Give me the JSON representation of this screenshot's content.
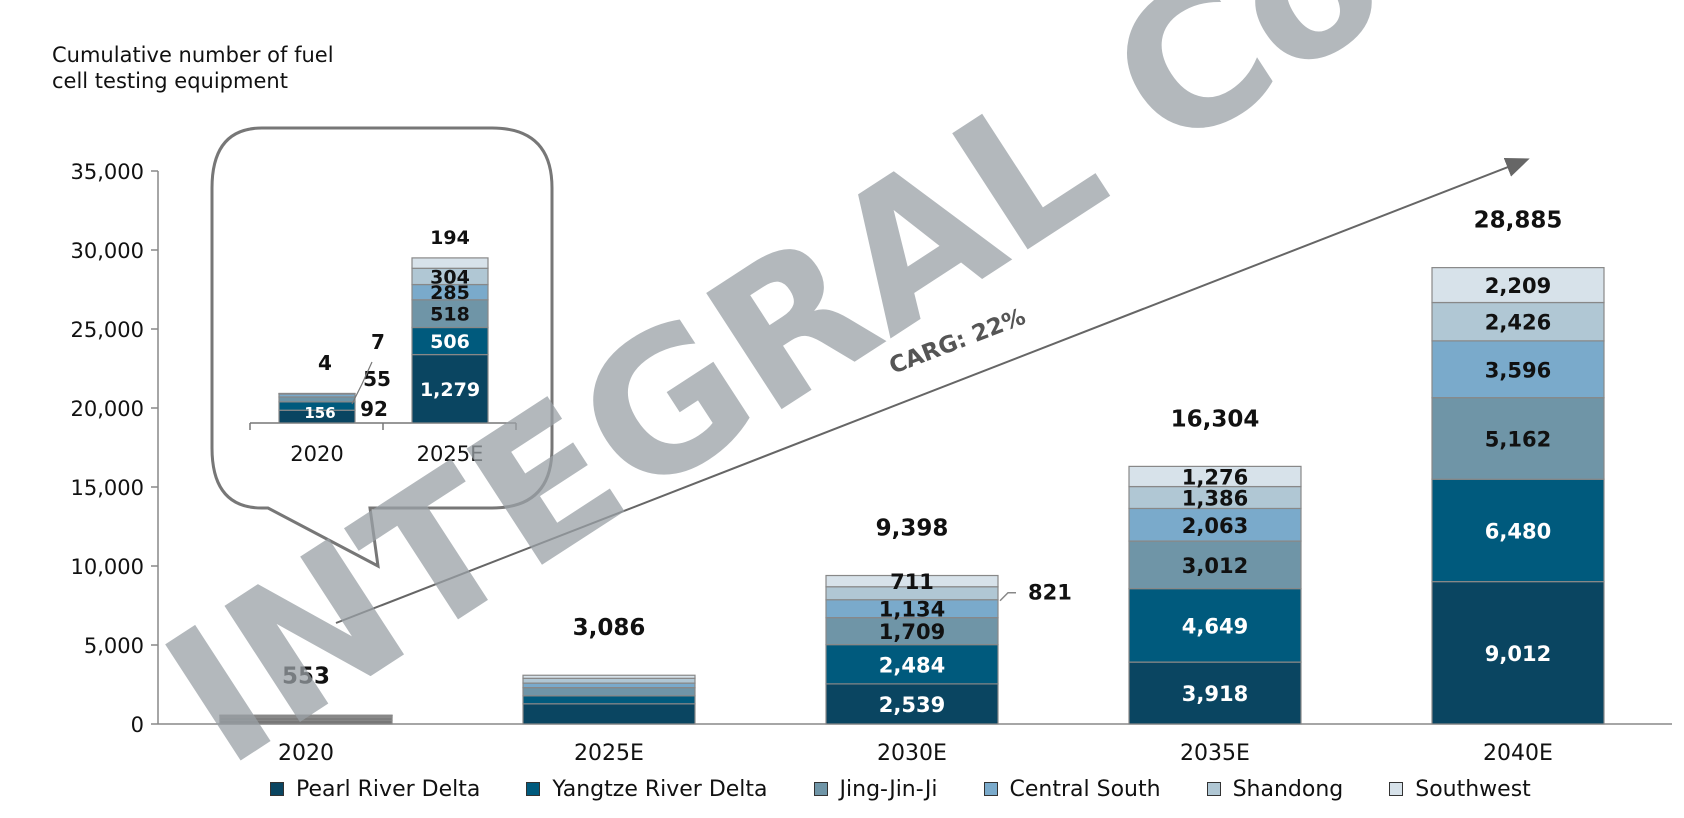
{
  "chart_data": {
    "type": "bar",
    "stacked": true,
    "ylabel": "Cumulative number of fuel cell testing equipment",
    "ylim": [
      0,
      35000
    ],
    "yticks": [
      "0",
      "5,000",
      "10,000",
      "15,000",
      "20,000",
      "25,000",
      "30,000",
      "35,000"
    ],
    "categories": [
      "2020",
      "2025E",
      "2030E",
      "2035E",
      "2040E"
    ],
    "series": [
      {
        "name": "Pearl River Delta",
        "color": "#0a4561",
        "values": [
          null,
          null,
          2539,
          3918,
          9012
        ],
        "labels": [
          "",
          "",
          "2,539",
          "3,918",
          "9,012"
        ]
      },
      {
        "name": "Yangtze River Delta",
        "color": "#005a7d",
        "values": [
          null,
          null,
          2484,
          4649,
          6480
        ],
        "labels": [
          "",
          "",
          "2,484",
          "4,649",
          "6,480"
        ]
      },
      {
        "name": "Jing-Jin-Ji",
        "color": "#6f95a7",
        "values": [
          null,
          null,
          1709,
          3012,
          5162
        ],
        "labels": [
          "",
          "",
          "1,709",
          "3,012",
          "5,162"
        ]
      },
      {
        "name": "Central South",
        "color": "#7aaacb",
        "values": [
          null,
          null,
          1134,
          2063,
          3596
        ],
        "labels": [
          "",
          "",
          "1,134",
          "2,063",
          "3,596"
        ]
      },
      {
        "name": "Shandong",
        "color": "#b0c7d4",
        "values": [
          null,
          null,
          821,
          1386,
          2426
        ],
        "labels": [
          "",
          "",
          "",
          "1,386",
          "2,426"
        ]
      },
      {
        "name": "Southwest",
        "color": "#d7e2ea",
        "values": [
          null,
          null,
          711,
          1276,
          2209
        ],
        "labels": [
          "",
          "",
          "711",
          "1,276",
          "2,209"
        ]
      }
    ],
    "segments_2020": [
      {
        "name": "Pearl River Delta",
        "value": 239
      },
      {
        "name": "Yangtze River Delta",
        "value": 156
      },
      {
        "name": "Jing-Jin-Ji",
        "value": 92
      },
      {
        "name": "Central South",
        "value": 55
      },
      {
        "name": "Shandong",
        "value": 7
      },
      {
        "name": "Southwest",
        "value": 4
      }
    ],
    "segments_2025E": [
      {
        "name": "Pearl River Delta",
        "value": 1279
      },
      {
        "name": "Yangtze River Delta",
        "value": 506
      },
      {
        "name": "Jing-Jin-Ji",
        "value": 518
      },
      {
        "name": "Central South",
        "value": 285
      },
      {
        "name": "Shandong",
        "value": 304
      },
      {
        "name": "Southwest",
        "value": 194
      }
    ],
    "totals": [
      {
        "category": "2020",
        "value": 553,
        "label": "553"
      },
      {
        "category": "2025E",
        "value": 3086,
        "label": "3,086"
      },
      {
        "category": "2030E",
        "value": 9398,
        "label": "9,398"
      },
      {
        "category": "2035E",
        "value": 16304,
        "label": "16,304"
      },
      {
        "category": "2040E",
        "value": 28885,
        "label": "28,885"
      }
    ],
    "outside_label_2030E_shandong": "821",
    "cagr_label": "CARG: 22%",
    "legend_position": "bottom",
    "inset": {
      "categories": [
        "2020",
        "2025E"
      ],
      "series_2020": [
        {
          "name": "Yangtze River Delta",
          "label": "156"
        },
        {
          "name": "Jing-Jin-Ji",
          "label": "92"
        },
        {
          "name": "Central South",
          "label": "55"
        },
        {
          "name": "Shandong",
          "label": "7"
        },
        {
          "name": "Southwest",
          "label": "4"
        }
      ],
      "series_2025E": [
        {
          "name": "Pearl River Delta",
          "label": "1,279"
        },
        {
          "name": "Yangtze River Delta",
          "label": "506"
        },
        {
          "name": "Jing-Jin-Ji",
          "label": "518"
        },
        {
          "name": "Central South",
          "label": "285"
        },
        {
          "name": "Shandong",
          "label": "304"
        },
        {
          "name": "Southwest",
          "label": "194"
        }
      ]
    }
  },
  "watermark": "INTEGRAL Co., Ltd",
  "legend": [
    {
      "name": "Pearl River Delta",
      "color": "#0a4561"
    },
    {
      "name": "Yangtze River Delta",
      "color": "#005a7d"
    },
    {
      "name": "Jing-Jin-Ji",
      "color": "#6f95a7"
    },
    {
      "name": "Central South",
      "color": "#7aaacb"
    },
    {
      "name": "Shandong",
      "color": "#b0c7d4"
    },
    {
      "name": "Southwest",
      "color": "#d7e2ea"
    }
  ]
}
